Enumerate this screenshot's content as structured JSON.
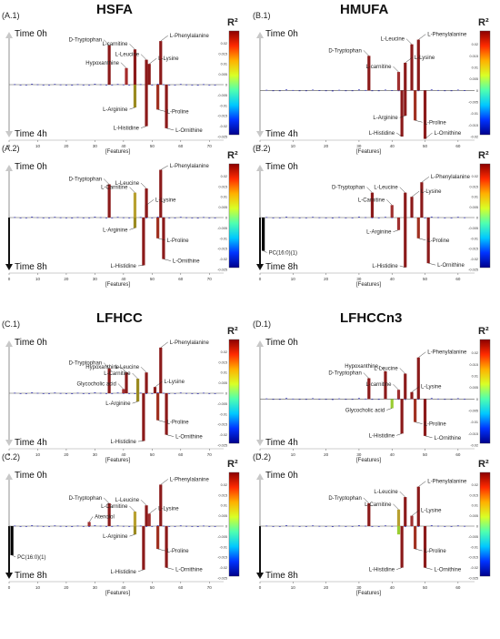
{
  "titles": {
    "A": "HSFA",
    "B": "HMUFA",
    "C": "LFHCC",
    "D": "LFHCCn3"
  },
  "r2_label": "R²",
  "colorbar": [
    "#00008b",
    "#0033ff",
    "#00c8ff",
    "#4fffb0",
    "#d9ff26",
    "#ffb000",
    "#ff2a00",
    "#8b0000"
  ],
  "chart_data": [
    {
      "id": "A.1",
      "label": "(A.1)",
      "type": "bar",
      "time_top": "Time 0h",
      "time_bottom": "Time 4h",
      "xlabel": "[Features]",
      "xlim": [
        0,
        75
      ],
      "ylim": [
        -0.025,
        0.025
      ],
      "xticks": [
        0,
        10,
        20,
        30,
        40,
        50,
        60,
        70
      ],
      "yticks": [
        0.02,
        0.015,
        0.01,
        0.005,
        0,
        -0.005,
        -0.01,
        -0.015,
        -0.02,
        -0.025
      ],
      "bars": [
        {
          "x": 35,
          "y": 0.019,
          "name": "D-Tryptophan",
          "color": "#8b1a1a"
        },
        {
          "x": 41,
          "y": 0.008,
          "name": "Hypoxanthine",
          "color": "#a52a2a"
        },
        {
          "x": 44,
          "y": 0.017,
          "name": "L-carnitine",
          "color": "#8b1a1a"
        },
        {
          "x": 44,
          "y": -0.011,
          "name": "L-Arginine",
          "color": "#9a8a20"
        },
        {
          "x": 48,
          "y": 0.012,
          "name": "L-Leucine",
          "color": "#8b1a1a"
        },
        {
          "x": 49,
          "y": 0.01,
          "name": "L-Lysine",
          "color": "#8b1a1a"
        },
        {
          "x": 48,
          "y": -0.02,
          "name": "L-Histidine",
          "color": "#8b1a1a"
        },
        {
          "x": 53,
          "y": 0.021,
          "name": "L-Phenylalanine",
          "color": "#8b1a1a"
        },
        {
          "x": 52,
          "y": -0.012,
          "name": "L-Proline",
          "color": "#a03020"
        },
        {
          "x": 55,
          "y": -0.021,
          "name": "L-Ornithine",
          "color": "#8b1a1a"
        }
      ]
    },
    {
      "id": "B.1",
      "label": "(B.1)",
      "type": "bar",
      "time_top": "Time 0h",
      "time_bottom": "Time 4h",
      "xlabel": "[Features]",
      "xlim": [
        0,
        65
      ],
      "ylim": [
        -0.02,
        0.025
      ],
      "xticks": [
        0,
        10,
        20,
        30,
        40,
        50,
        60
      ],
      "yticks": [
        0.02,
        0.015,
        0.01,
        0.005,
        0,
        -0.005,
        -0.01,
        -0.015,
        -0.02
      ],
      "bars": [
        {
          "x": 33,
          "y": 0.015,
          "name": "D-Tryptophan",
          "color": "#8b1a1a"
        },
        {
          "x": 42,
          "y": 0.008,
          "name": "L-carnitine",
          "color": "#a03030"
        },
        {
          "x": 46,
          "y": 0.02,
          "name": "L-Leucine",
          "color": "#8b1a1a"
        },
        {
          "x": 44,
          "y": 0.012,
          "name": "L-Lysine",
          "color": "#8b1a1a"
        },
        {
          "x": 44,
          "y": -0.011,
          "name": "L-Arginine",
          "color": "#8b1a1a"
        },
        {
          "x": 43,
          "y": -0.02,
          "name": "L-Histidine",
          "color": "#8b1a1a"
        },
        {
          "x": 48,
          "y": 0.022,
          "name": "L-Phenylalanine",
          "color": "#8b1a1a"
        },
        {
          "x": 47,
          "y": -0.013,
          "name": "L-Proline",
          "color": "#a03020"
        },
        {
          "x": 50,
          "y": -0.021,
          "name": "L-Ornithine",
          "color": "#8b1a1a"
        }
      ]
    },
    {
      "id": "A.2",
      "label": "(A.2)",
      "type": "bar",
      "time_top": "Time 0h",
      "time_bottom": "Time 8h",
      "xlabel": "[Features]",
      "xlim": [
        0,
        75
      ],
      "ylim": [
        -0.025,
        0.025
      ],
      "xticks": [
        0,
        10,
        20,
        30,
        40,
        50,
        60,
        70
      ],
      "yticks": [
        0.02,
        0.015,
        0.01,
        0.005,
        0,
        -0.005,
        -0.01,
        -0.015,
        -0.02,
        -0.025
      ],
      "bars": [
        {
          "x": 35,
          "y": 0.016,
          "name": "D-Tryptophan",
          "color": "#8b1a1a"
        },
        {
          "x": 44,
          "y": 0.012,
          "name": "L-Carnitine",
          "color": "#b8a030"
        },
        {
          "x": 44,
          "y": -0.005,
          "name": "L-Arginine",
          "color": "#9a8a20"
        },
        {
          "x": 48,
          "y": 0.014,
          "name": "L-Leucine",
          "color": "#8b1a1a"
        },
        {
          "x": 48,
          "y": 0.006,
          "name": "L-Lysine",
          "color": "#8b1a1a"
        },
        {
          "x": 47,
          "y": -0.023,
          "name": "L-Histidine",
          "color": "#8b1a1a"
        },
        {
          "x": 53,
          "y": 0.023,
          "name": "L-Phenylalanine",
          "color": "#8b1a1a"
        },
        {
          "x": 52,
          "y": -0.01,
          "name": "L-Proline",
          "color": "#a03020"
        },
        {
          "x": 54,
          "y": -0.02,
          "name": "L-Ornithine",
          "color": "#8b1a1a"
        }
      ]
    },
    {
      "id": "B.2",
      "label": "(B.2)",
      "type": "bar",
      "time_top": "Time 0h",
      "time_bottom": "Time 8h",
      "xlabel": "[Features]",
      "xlim": [
        0,
        65
      ],
      "ylim": [
        -0.025,
        0.025
      ],
      "xticks": [
        0,
        10,
        20,
        30,
        40,
        50,
        60
      ],
      "yticks": [
        0.02,
        0.015,
        0.01,
        0.005,
        0,
        -0.005,
        -0.01,
        -0.015,
        -0.02,
        -0.025
      ],
      "bars": [
        {
          "x": 1,
          "y": -0.016,
          "name": "PC(16:0)(1)",
          "color": "#000000"
        },
        {
          "x": 34,
          "y": 0.012,
          "name": "D-Tryptophan",
          "color": "#8b1a1a"
        },
        {
          "x": 40,
          "y": 0.006,
          "name": "L-Carnitine",
          "color": "#a03030"
        },
        {
          "x": 44,
          "y": 0.012,
          "name": "L-Leucine",
          "color": "#8b1a1a"
        },
        {
          "x": 46,
          "y": 0.01,
          "name": "L-Lysine",
          "color": "#8b1a1a"
        },
        {
          "x": 42,
          "y": -0.006,
          "name": "L-Arginine",
          "color": "#a03030"
        },
        {
          "x": 44,
          "y": -0.024,
          "name": "L-Histidine",
          "color": "#8b1a1a"
        },
        {
          "x": 49,
          "y": 0.017,
          "name": "L-Phenylalanine",
          "color": "#8b1a1a"
        },
        {
          "x": 48,
          "y": -0.01,
          "name": "L-Proline",
          "color": "#a03020"
        },
        {
          "x": 51,
          "y": -0.022,
          "name": "L-Ornithine",
          "color": "#8b1a1a"
        }
      ]
    },
    {
      "id": "C.1",
      "label": "(C.1)",
      "type": "bar",
      "time_top": "Time 0h",
      "time_bottom": "Time 4h",
      "xlabel": "[Features]",
      "xlim": [
        0,
        75
      ],
      "ylim": [
        -0.025,
        0.025
      ],
      "xticks": [
        0,
        10,
        20,
        30,
        40,
        50,
        60,
        70
      ],
      "yticks": [
        0.02,
        0.015,
        0.01,
        0.005,
        0,
        -0.005,
        -0.01,
        -0.015,
        -0.02,
        -0.025
      ],
      "bars": [
        {
          "x": 35,
          "y": 0.012,
          "name": "D-Tryptophan",
          "color": "#8b1a1a"
        },
        {
          "x": 41,
          "y": 0.01,
          "name": "Hypoxanthine",
          "color": "#8b1a1a"
        },
        {
          "x": 40,
          "y": 0.002,
          "name": "Glycocholic acid",
          "color": "#a03030"
        },
        {
          "x": 45,
          "y": 0.007,
          "name": "L-Carnitine",
          "color": "#9a8a20"
        },
        {
          "x": 45,
          "y": -0.004,
          "name": "L-Arginine",
          "color": "#9a8a20"
        },
        {
          "x": 48,
          "y": 0.01,
          "name": "L-Leucine",
          "color": "#8b1a1a"
        },
        {
          "x": 47,
          "y": -0.023,
          "name": "L-Histidine",
          "color": "#8b1a1a"
        },
        {
          "x": 53,
          "y": 0.022,
          "name": "L-Phenylalanine",
          "color": "#8b1a1a"
        },
        {
          "x": 51,
          "y": 0.003,
          "name": "L-Lysine",
          "color": "#8b1a1a"
        },
        {
          "x": 52,
          "y": -0.013,
          "name": "L-Proline",
          "color": "#a03020"
        },
        {
          "x": 55,
          "y": -0.02,
          "name": "L-Ornithine",
          "color": "#8b1a1a"
        }
      ]
    },
    {
      "id": "D.1",
      "label": "(D.1)",
      "type": "bar",
      "time_top": "Time 0h",
      "time_bottom": "Time 4h",
      "xlabel": "[Features]",
      "xlim": [
        0,
        65
      ],
      "ylim": [
        -0.02,
        0.025
      ],
      "xticks": [
        0,
        10,
        20,
        30,
        40,
        50,
        60
      ],
      "yticks": [
        0.02,
        0.015,
        0.01,
        0.005,
        0,
        -0.005,
        -0.01,
        -0.015,
        -0.02
      ],
      "bars": [
        {
          "x": 33,
          "y": 0.009,
          "name": "D-Tryptophan",
          "color": "#8b1a1a"
        },
        {
          "x": 38,
          "y": 0.012,
          "name": "Hypoxanthine",
          "color": "#8b1a1a"
        },
        {
          "x": 42,
          "y": 0.004,
          "name": "L-carnitine",
          "color": "#a03030"
        },
        {
          "x": 40,
          "y": -0.004,
          "name": "Glycocholic acid",
          "color": "#9acd32"
        },
        {
          "x": 44,
          "y": 0.011,
          "name": "L-Leucine",
          "color": "#8b1a1a"
        },
        {
          "x": 43,
          "y": -0.015,
          "name": "L-Histidine",
          "color": "#8b1a1a"
        },
        {
          "x": 48,
          "y": 0.018,
          "name": "L-Phenylalanine",
          "color": "#8b1a1a"
        },
        {
          "x": 46,
          "y": 0.003,
          "name": "L-Lysine",
          "color": "#8b1a1a"
        },
        {
          "x": 47,
          "y": -0.01,
          "name": "L-Proline",
          "color": "#a03020"
        },
        {
          "x": 50,
          "y": -0.016,
          "name": "L-Ornithine",
          "color": "#8b1a1a"
        }
      ]
    },
    {
      "id": "C.2",
      "label": "(C.2)",
      "type": "bar",
      "time_top": "Time 0h",
      "time_bottom": "Time 8h",
      "xlabel": "[Features]",
      "xlim": [
        0,
        75
      ],
      "ylim": [
        -0.025,
        0.025
      ],
      "xticks": [
        0,
        10,
        20,
        30,
        40,
        50,
        60,
        70
      ],
      "yticks": [
        0.02,
        0.015,
        0.01,
        0.005,
        0,
        -0.005,
        -0.01,
        -0.015,
        -0.02,
        -0.025
      ],
      "bars": [
        {
          "x": 1,
          "y": -0.014,
          "name": "PC(16:0)(1)",
          "color": "#000000"
        },
        {
          "x": 28,
          "y": 0.002,
          "name": "Atenolol",
          "color": "#a03030"
        },
        {
          "x": 35,
          "y": 0.011,
          "name": "D-Tryptophan",
          "color": "#8b1a1a"
        },
        {
          "x": 44,
          "y": 0.007,
          "name": "L-Carnitine",
          "color": "#b8a030"
        },
        {
          "x": 44,
          "y": -0.004,
          "name": "L-Arginine",
          "color": "#9a8a20"
        },
        {
          "x": 48,
          "y": 0.01,
          "name": "L-Leucine",
          "color": "#8b1a1a"
        },
        {
          "x": 49,
          "y": 0.006,
          "name": "L-Lysine",
          "color": "#a03030"
        },
        {
          "x": 47,
          "y": -0.021,
          "name": "L-Histidine",
          "color": "#8b1a1a"
        },
        {
          "x": 53,
          "y": 0.02,
          "name": "L-Phenylalanine",
          "color": "#8b1a1a"
        },
        {
          "x": 52,
          "y": -0.011,
          "name": "L-Proline",
          "color": "#a03020"
        },
        {
          "x": 55,
          "y": -0.02,
          "name": "L-Ornithine",
          "color": "#8b1a1a"
        }
      ]
    },
    {
      "id": "D.2",
      "label": "(D.2)",
      "type": "bar",
      "time_top": "Time 0h",
      "time_bottom": "Time 8h",
      "xlabel": "[Features]",
      "xlim": [
        0,
        65
      ],
      "ylim": [
        -0.025,
        0.025
      ],
      "xticks": [
        0,
        10,
        20,
        30,
        40,
        50,
        60
      ],
      "yticks": [
        0.02,
        0.015,
        0.01,
        0.005,
        0,
        -0.005,
        -0.01,
        -0.015,
        -0.02,
        -0.025
      ],
      "bars": [
        {
          "x": 33,
          "y": 0.011,
          "name": "D-Tryptophan",
          "color": "#8b1a1a"
        },
        {
          "x": 42,
          "y": 0.008,
          "name": "L-Carnitine",
          "color": "#b8a030"
        },
        {
          "x": 42,
          "y": -0.004,
          "name": "",
          "color": "#9acd32"
        },
        {
          "x": 44,
          "y": 0.014,
          "name": "L-Leucine",
          "color": "#8b1a1a"
        },
        {
          "x": 46,
          "y": 0.005,
          "name": "L-Lysine",
          "color": "#a03030"
        },
        {
          "x": 43,
          "y": -0.02,
          "name": "L-Histidine",
          "color": "#8b1a1a"
        },
        {
          "x": 48,
          "y": 0.019,
          "name": "L-Phenylalanine",
          "color": "#8b1a1a"
        },
        {
          "x": 47,
          "y": -0.011,
          "name": "L-Proline",
          "color": "#a03020"
        },
        {
          "x": 50,
          "y": -0.02,
          "name": "L-Ornithine",
          "color": "#8b1a1a"
        }
      ]
    }
  ]
}
